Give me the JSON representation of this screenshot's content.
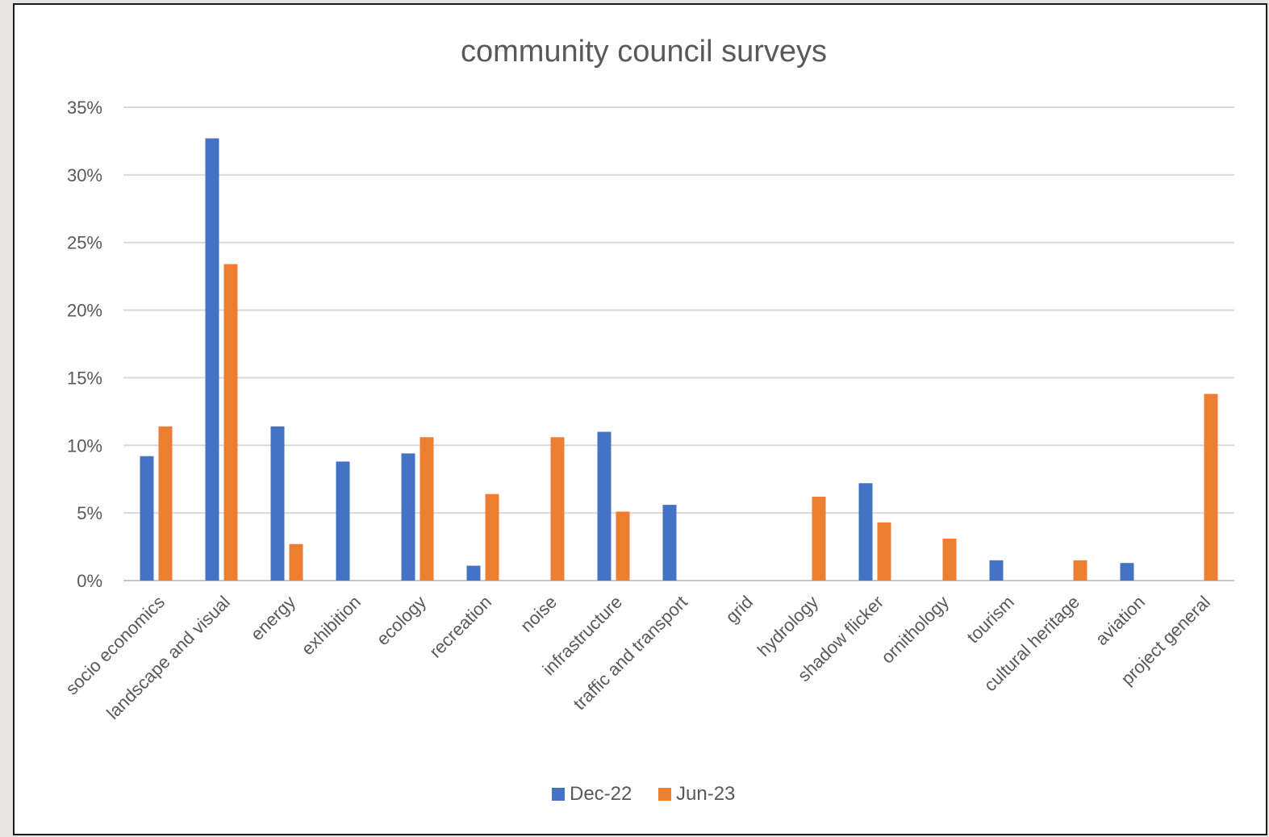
{
  "chart_data": {
    "type": "bar",
    "title": "community council surveys",
    "xlabel": "",
    "ylabel": "",
    "ylim": [
      0,
      0.35
    ],
    "yticks": [
      "0%",
      "5%",
      "10%",
      "15%",
      "20%",
      "25%",
      "30%",
      "35%"
    ],
    "grid": true,
    "legend_position": "bottom",
    "categories": [
      "socio economics",
      "landscape and visual",
      "energy",
      "exhibition",
      "ecology",
      "recreation",
      "noise",
      "infrastructure",
      "traffic and transport",
      "grid",
      "hydrology",
      "shadow flicker",
      "ornithology",
      "tourism",
      "cultural heritage",
      "aviation",
      "project general"
    ],
    "series": [
      {
        "name": "Dec-22",
        "color": "#4472c4",
        "values": [
          0.092,
          0.327,
          0.114,
          0.088,
          0.094,
          0.011,
          0.0,
          0.11,
          0.056,
          0.0,
          0.0,
          0.072,
          0.0,
          0.015,
          0.0,
          0.013,
          0.0
        ]
      },
      {
        "name": "Jun-23",
        "color": "#ed7d31",
        "values": [
          0.114,
          0.234,
          0.027,
          0.0,
          0.106,
          0.064,
          0.106,
          0.051,
          0.0,
          0.0,
          0.062,
          0.043,
          0.031,
          0.0,
          0.015,
          0.0,
          0.138
        ]
      }
    ]
  }
}
